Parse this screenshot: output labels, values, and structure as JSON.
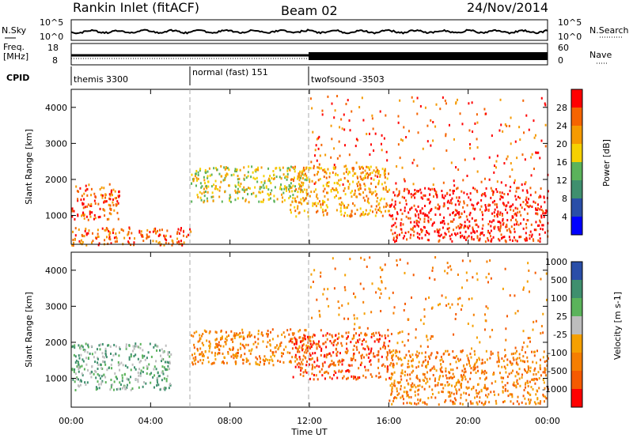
{
  "header": {
    "title": "Rankin Inlet (fitACF)",
    "beam": "Beam 02",
    "date": "24/Nov/2014"
  },
  "top_panel": {
    "left_label": "N.Sky",
    "right_label": "N.Search",
    "left_ticks": [
      "10^5",
      "10^0"
    ],
    "right_ticks": [
      "10^5",
      "10^0"
    ]
  },
  "freq_panel": {
    "left_label_1": "Freq.",
    "left_label_2": "[MHz]",
    "left_ticks": [
      "18",
      "8"
    ],
    "right_ticks": [
      "60",
      "0"
    ],
    "right_label": "Nave"
  },
  "cpid_panel": {
    "label": "CPID",
    "segments": [
      {
        "name": "themis 3300"
      },
      {
        "name": "normal (fast) 151"
      },
      {
        "name": "twofsound -3503"
      }
    ]
  },
  "colors": {
    "power": [
      "#0000ff",
      "#2a4ea8",
      "#3f8f6e",
      "#5bb35b",
      "#f5d000",
      "#f59a00",
      "#f56400",
      "#ff0000"
    ],
    "velocity": [
      "#2a4ea8",
      "#3f8f6e",
      "#5bb35b",
      "#bdbdbd",
      "#f5a000",
      "#f57e00",
      "#f55a00",
      "#ff0000"
    ]
  },
  "chart_data": [
    {
      "type": "heatmap",
      "name": "power",
      "xlabel": "",
      "ylabel": "Slant Range [km]",
      "x_ticks": [
        "00:00",
        "04:00",
        "08:00",
        "12:00",
        "16:00",
        "20:00",
        "00:00"
      ],
      "y_ticks": [
        1000,
        2000,
        3000,
        4000
      ],
      "ylim": [
        200,
        4500
      ],
      "colorbar": {
        "label": "Power [dB]",
        "ticks": [
          4,
          8,
          12,
          16,
          20,
          24,
          28
        ]
      },
      "mode_boundaries_ut": [
        "06:00",
        "12:00"
      ],
      "regions": [
        {
          "t": [
            0.0,
            2.4
          ],
          "range": [
            900,
            1900
          ],
          "level": 26
        },
        {
          "t": [
            0.0,
            6.0
          ],
          "range": [
            200,
            700
          ],
          "level": 26
        },
        {
          "t": [
            6.0,
            12.0
          ],
          "range": [
            1400,
            2400
          ],
          "level": 20
        },
        {
          "t": [
            11.0,
            16.0
          ],
          "range": [
            1000,
            2400
          ],
          "level": 22
        },
        {
          "t": [
            16.0,
            24.0
          ],
          "range": [
            300,
            1800
          ],
          "level": 30
        }
      ]
    },
    {
      "type": "heatmap",
      "name": "velocity",
      "xlabel": "Time UT",
      "ylabel": "Slant Range [km]",
      "x_ticks": [
        "00:00",
        "04:00",
        "08:00",
        "12:00",
        "16:00",
        "20:00",
        "00:00"
      ],
      "y_ticks": [
        1000,
        2000,
        3000,
        4000
      ],
      "ylim": [
        200,
        4500
      ],
      "colorbar": {
        "label": "Velocity [m s-1]",
        "ticks": [
          "1000",
          "500",
          "100",
          "25",
          "-25",
          "-100",
          "-500",
          "-1000"
        ]
      },
      "regions": [
        {
          "t": [
            0.0,
            5.0
          ],
          "range": [
            700,
            2000
          ],
          "level": 100
        },
        {
          "t": [
            6.0,
            12.0
          ],
          "range": [
            1400,
            2400
          ],
          "level": -100
        },
        {
          "t": [
            11.0,
            16.0
          ],
          "range": [
            1000,
            2300
          ],
          "level": -500
        },
        {
          "t": [
            16.0,
            24.0
          ],
          "range": [
            300,
            1800
          ],
          "level": -100
        }
      ]
    }
  ]
}
